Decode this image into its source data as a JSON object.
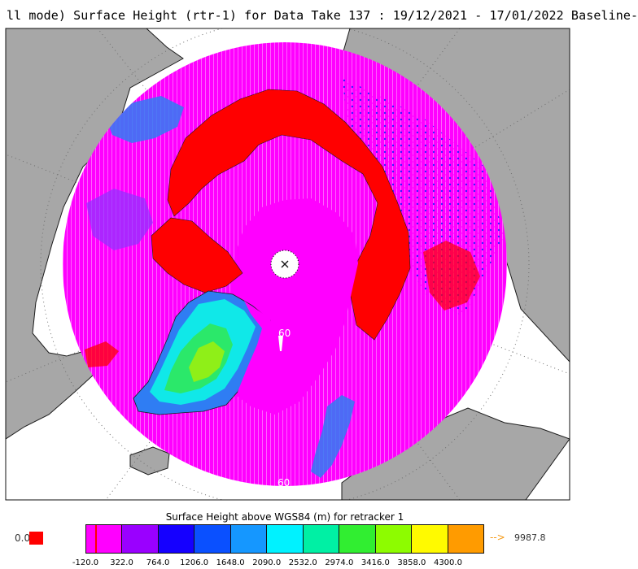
{
  "title": "ll mode) Surface Height (rtr-1) for Data Take 137 : 19/12/2021 - 17/01/2022 Baseline-",
  "map": {
    "projection": "north-polar-stereographic",
    "colors": {
      "ocean": "#ffffff",
      "land": "#a7a7a7",
      "coast": "#1c1c1c",
      "grid": "#7a7a7a",
      "sea_ice": "#ff0000",
      "low_surface": "#ff00ff",
      "pole_hole": "#ffffff"
    },
    "latitude_labels": [
      "60",
      "60"
    ],
    "pole_marker": "x"
  },
  "colorbar": {
    "title": "Surface Height above WGS84 (m) for retracker 1",
    "zero_label": "0.0",
    "zero_color": "#ff0000",
    "overflow_arrow": "-->",
    "overflow_value": "9987.8",
    "overflow_color": "#f59a16",
    "ticks": [
      "-120.0",
      "322.0",
      "764.0",
      "1206.0",
      "1648.0",
      "2090.0",
      "2532.0",
      "2974.0",
      "3416.0",
      "3858.0",
      "4300.0"
    ],
    "colors": [
      "#ff00ff",
      "#9a00ff",
      "#1500ff",
      "#0a50ff",
      "#1597ff",
      "#00f2ff",
      "#00f0a4",
      "#31ee31",
      "#8dfc00",
      "#fffa00",
      "#ff9b00"
    ]
  }
}
